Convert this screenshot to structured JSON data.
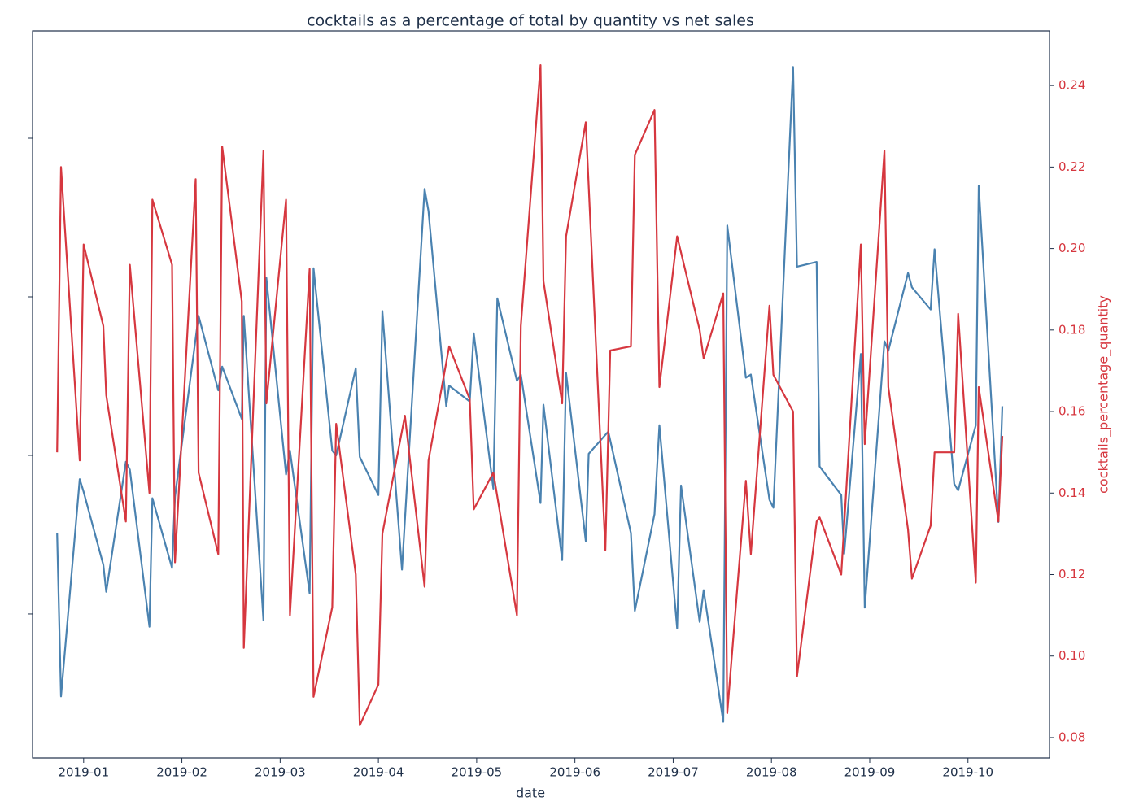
{
  "chart_data": {
    "type": "line",
    "title": "cocktails as a percentage of total by quantity vs net sales",
    "xlabel": "date",
    "y2label": "cocktails_percentage_quantity",
    "xlim": [
      -0.52,
      9.83
    ],
    "xticks": [
      {
        "value": 0,
        "label": "2019-01"
      },
      {
        "value": 1,
        "label": "2019-02"
      },
      {
        "value": 2,
        "label": "2019-03"
      },
      {
        "value": 3,
        "label": "2019-04"
      },
      {
        "value": 4,
        "label": "2019-05"
      },
      {
        "value": 5,
        "label": "2019-06"
      },
      {
        "value": 6,
        "label": "2019-07"
      },
      {
        "value": 7,
        "label": "2019-08"
      },
      {
        "value": 8,
        "label": "2019-09"
      },
      {
        "value": 9,
        "label": "2019-10"
      }
    ],
    "ylim": [
      0.092,
      4.677
    ],
    "yticks": [
      1,
      2,
      3,
      4
    ],
    "ytick_labels": false,
    "y2lim": [
      0.075,
      0.2534
    ],
    "y2ticks": [
      {
        "value": 0.08,
        "label": "0.08"
      },
      {
        "value": 0.1,
        "label": "0.10"
      },
      {
        "value": 0.12,
        "label": "0.12"
      },
      {
        "value": 0.14,
        "label": "0.14"
      },
      {
        "value": 0.16,
        "label": "0.16"
      },
      {
        "value": 0.18,
        "label": "0.18"
      },
      {
        "value": 0.2,
        "label": "0.20"
      },
      {
        "value": 0.22,
        "label": "0.22"
      },
      {
        "value": 0.24,
        "label": "0.24"
      }
    ],
    "y2color": "#d6373f",
    "series": [
      {
        "color": "#4a82b0",
        "axis": "y",
        "x": [
          -0.27,
          -0.23,
          -0.04,
          0,
          0.2,
          0.23,
          0.43,
          0.47,
          0.67,
          0.7,
          0.9,
          0.93,
          1.17,
          1.37,
          1.41,
          1.61,
          1.63,
          1.83,
          1.86,
          2.06,
          2.1,
          2.3,
          2.34,
          2.53,
          2.57,
          2.77,
          2.81,
          3.0,
          3.04,
          3.24,
          3.47,
          3.51,
          3.69,
          3.72,
          3.93,
          3.97,
          4.17,
          4.21,
          4.41,
          4.45,
          4.65,
          4.68,
          4.87,
          4.91,
          5.11,
          5.14,
          5.34,
          5.57,
          5.61,
          5.81,
          5.86,
          6.04,
          6.08,
          6.27,
          6.31,
          6.51,
          6.55,
          6.74,
          6.79,
          6.98,
          7.02,
          7.22,
          7.26,
          7.46,
          7.49,
          7.71,
          7.74,
          7.91,
          7.95,
          8.15,
          8.19,
          8.39,
          8.43,
          8.62,
          8.66,
          8.86,
          8.9,
          9.08,
          9.11,
          9.31,
          9.35
        ],
        "values": [
          1.51,
          0.48,
          1.85,
          1.77,
          1.31,
          1.14,
          1.96,
          1.91,
          0.92,
          1.73,
          1.29,
          1.74,
          2.88,
          2.41,
          2.56,
          2.23,
          2.88,
          0.96,
          3.12,
          1.88,
          2.03,
          1.13,
          3.18,
          2.03,
          2.0,
          2.55,
          1.99,
          1.75,
          2.91,
          1.28,
          3.68,
          3.54,
          2.31,
          2.44,
          2.34,
          2.77,
          1.79,
          2.99,
          2.47,
          2.51,
          1.7,
          2.32,
          1.34,
          2.52,
          1.46,
          2.01,
          2.15,
          1.51,
          1.02,
          1.63,
          2.19,
          0.91,
          1.81,
          0.95,
          1.15,
          0.32,
          3.45,
          2.49,
          2.51,
          1.72,
          1.67,
          4.45,
          3.19,
          3.22,
          1.93,
          1.75,
          1.38,
          2.64,
          1.04,
          2.72,
          2.66,
          3.15,
          3.06,
          2.92,
          3.3,
          1.82,
          1.78,
          2.19,
          3.7,
          1.58,
          2.31
        ]
      },
      {
        "color": "#d6373f",
        "axis": "y2",
        "x": [
          -0.27,
          -0.23,
          -0.04,
          0,
          0.2,
          0.23,
          0.43,
          0.47,
          0.67,
          0.7,
          0.9,
          0.93,
          1.14,
          1.17,
          1.37,
          1.41,
          1.61,
          1.63,
          1.83,
          1.86,
          2.06,
          2.1,
          2.3,
          2.34,
          2.53,
          2.57,
          2.77,
          2.81,
          3.0,
          3.04,
          3.27,
          3.47,
          3.51,
          3.72,
          3.93,
          3.97,
          4.17,
          4.41,
          4.45,
          4.65,
          4.68,
          4.87,
          4.91,
          5.11,
          5.31,
          5.36,
          5.57,
          5.61,
          5.81,
          5.86,
          6.04,
          6.27,
          6.31,
          6.51,
          6.55,
          6.74,
          6.79,
          6.98,
          7.02,
          7.22,
          7.26,
          7.46,
          7.49,
          7.71,
          7.91,
          7.95,
          8.15,
          8.19,
          8.39,
          8.43,
          8.62,
          8.66,
          8.86,
          8.9,
          9.08,
          9.11,
          9.31,
          9.35
        ],
        "values": [
          0.15,
          0.22,
          0.148,
          0.201,
          0.181,
          0.164,
          0.133,
          0.196,
          0.14,
          0.212,
          0.196,
          0.123,
          0.217,
          0.145,
          0.125,
          0.225,
          0.187,
          0.102,
          0.224,
          0.162,
          0.212,
          0.11,
          0.195,
          0.09,
          0.112,
          0.157,
          0.12,
          0.083,
          0.093,
          0.13,
          0.159,
          0.117,
          0.148,
          0.176,
          0.163,
          0.136,
          0.145,
          0.11,
          0.181,
          0.245,
          0.192,
          0.162,
          0.203,
          0.231,
          0.126,
          0.175,
          0.176,
          0.223,
          0.234,
          0.166,
          0.203,
          0.18,
          0.173,
          0.189,
          0.086,
          0.143,
          0.125,
          0.186,
          0.169,
          0.16,
          0.095,
          0.133,
          0.134,
          0.12,
          0.201,
          0.152,
          0.224,
          0.166,
          0.131,
          0.119,
          0.132,
          0.15,
          0.15,
          0.184,
          0.118,
          0.166,
          0.133,
          0.154
        ]
      }
    ]
  }
}
